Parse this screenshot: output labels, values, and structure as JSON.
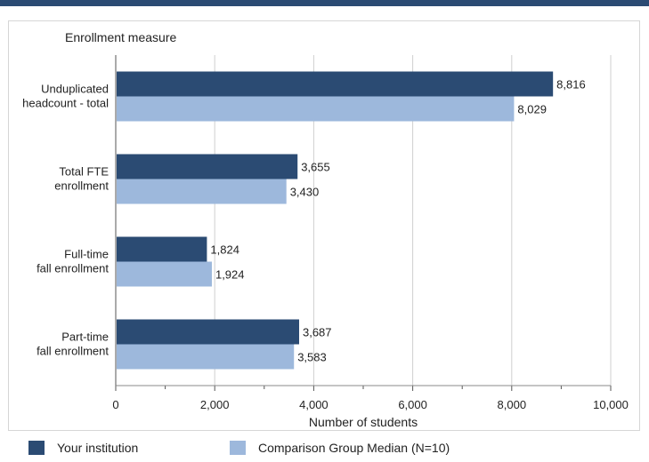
{
  "colors": {
    "header_bar": "#2b4b73",
    "your_institution": "#2b4b73",
    "comparison": "#9db8dc",
    "grid": "#cfcfcf"
  },
  "chart_data": {
    "type": "bar",
    "orientation": "horizontal",
    "title": "",
    "ylabel": "Enrollment measure",
    "xlabel": "Number of students",
    "xlim": [
      0,
      10000
    ],
    "xticks": [
      0,
      2000,
      4000,
      6000,
      8000,
      10000
    ],
    "xtick_labels": [
      "0",
      "2,000",
      "4,000",
      "6,000",
      "8,000",
      "10,000"
    ],
    "grid": true,
    "legend_position": "bottom",
    "categories": [
      [
        "Unduplicated",
        "headcount - total"
      ],
      [
        "Total FTE",
        "enrollment"
      ],
      [
        "Full-time",
        "fall enrollment"
      ],
      [
        "Part-time",
        "fall enrollment"
      ]
    ],
    "series": [
      {
        "name": "Your institution",
        "values": [
          8816,
          3655,
          1824,
          3687
        ],
        "labels": [
          "8,816",
          "3,655",
          "1,824",
          "3,687"
        ]
      },
      {
        "name": "Comparison Group Median (N=10)",
        "values": [
          8029,
          3430,
          1924,
          3583
        ],
        "labels": [
          "8,029",
          "3,430",
          "1,924",
          "3,583"
        ]
      }
    ]
  }
}
